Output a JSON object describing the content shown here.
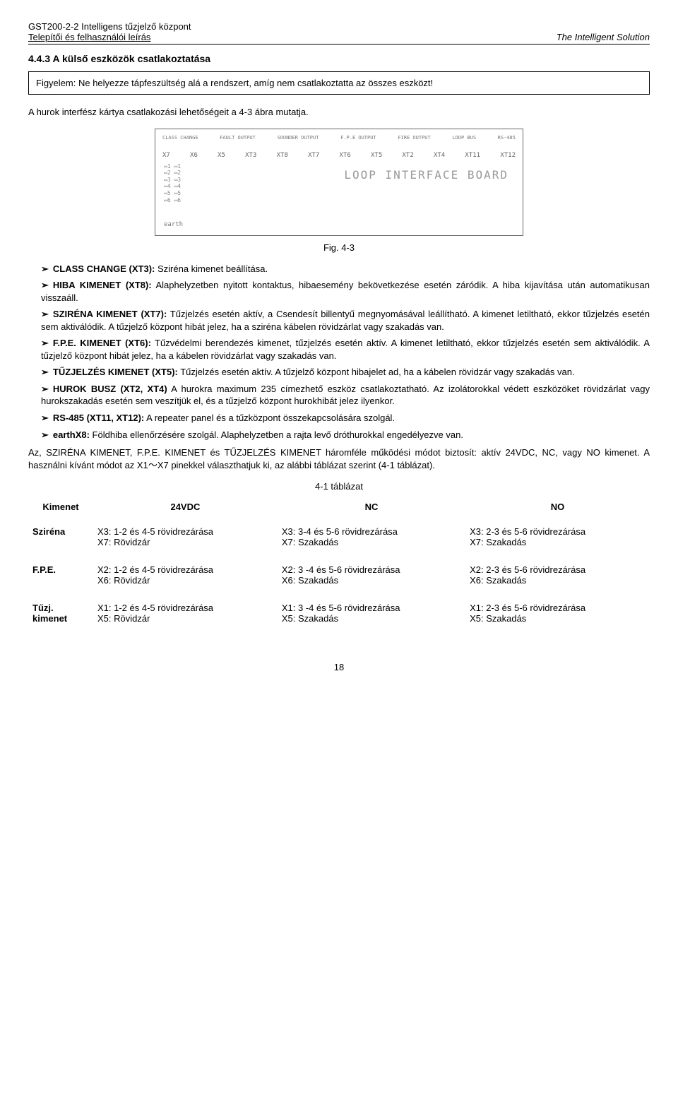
{
  "header": {
    "title": "GST200-2-2 Intelligens tűzjelző központ",
    "subtitle": "Telepítői és felhasználói leírás",
    "brand": "The Intelligent Solution"
  },
  "section": {
    "number_title": "4.4.3 A külső eszközök csatlakoztatása"
  },
  "warning": "Figyelem: Ne helyezze tápfeszültség alá a rendszert, amíg nem csatlakoztatta az összes eszközt!",
  "intro": "A hurok interfész kártya csatlakozási lehetőségeit a 4-3 ábra mutatja.",
  "figure": {
    "caption": "Fig. 4-3",
    "board_label": "LOOP INTERFACE BOARD",
    "top_labels": [
      "CLASS CHANGE",
      "FAULT OUTPUT",
      "SOUNDER OUTPUT",
      "F.P.E OUTPUT",
      "FIRE OUTPUT",
      "LOOP BUS",
      "RS-485"
    ],
    "xt_labels": [
      "X7",
      "X6",
      "X5",
      "XT3",
      "XT8",
      "XT7",
      "XT6",
      "XT5",
      "XT2",
      "XT4",
      "XT11",
      "XT12"
    ],
    "earth": "earth"
  },
  "bullets": {
    "b1_label": "CLASS CHANGE (XT3):",
    "b1_text": " Sziréna kimenet beállítása.",
    "b2_label": "HIBA KIMENET (XT8):",
    "b2_text": " Alaphelyzetben nyitott kontaktus, hibaesemény bekövetkezése esetén záródik. A hiba kijavítása után automatikusan visszaáll.",
    "b3_label": "SZIRÉNA KIMENET (XT7):",
    "b3_text": " Tűzjelzés esetén aktív, a Csendesít billentyű megnyomásával leállítható. A kimenet letiltható, ekkor tűzjelzés esetén sem aktiválódik. A tűzjelző központ hibát jelez, ha a sziréna kábelen rövidzárlat vagy szakadás van.",
    "b4_label": "F.P.E. KIMENET (XT6):",
    "b4_text": " Tűzvédelmi berendezés kimenet, tűzjelzés esetén aktív. A kimenet letiltható, ekkor tűzjelzés esetén sem aktiválódik. A tűzjelző központ hibát jelez, ha a kábelen rövidzárlat vagy szakadás van.",
    "b5_label": "TŰZJELZÉS KIMENET (XT5):",
    "b5_text": " Tűzjelzés esetén aktív. A tűzjelző központ hibajelet ad, ha a kábelen rövidzár vagy szakadás van.",
    "b6_label": "HUROK BUSZ  (XT2,  XT4)",
    "b6_text": " A hurokra maximum 235 címezhető eszköz csatlakoztatható. Az izolátorokkal védett eszközöket rövidzárlat vagy hurokszakadás esetén sem veszítjük el, és a tűzjelző központ hurokhibát jelez ilyenkor.",
    "b7_label": "RS-485 (XT11, XT12):",
    "b7_text": " A repeater panel és a tűzközpont összekapcsolására szolgál.",
    "b8_label": "earthX8:",
    "b8_text": " Földhiba ellenőrzésére szolgál. Alaphelyzetben a rajta levő dróthurokkal engedélyezve van."
  },
  "summary": "Az, SZIRÉNA KIMENET, F.P.E. KIMENET és TŰZJELZÉS KIMENET háromféle működési módot biztosít: aktív 24VDC, NC, vagy NO kimenet. A használni kívánt módot az X1～X7 pinekkel választhatjuk ki, az alábbi táblázat szerint (4-1 táblázat).",
  "table": {
    "caption": "4-1 táblázat",
    "headers": [
      "Kimenet",
      "24VDC",
      "NC",
      "NO"
    ],
    "rows": [
      {
        "name": "Sziréna",
        "c24": "X3: 1-2 és 4-5 rövidrezárása\nX7: Rövidzár",
        "nc": "X3: 3-4 és 5-6 rövidrezárása\nX7: Szakadás",
        "no": "X3: 2-3 és 5-6 rövidrezárása\nX7: Szakadás"
      },
      {
        "name": "F.P.E.",
        "c24": "X2: 1-2 és 4-5 rövidrezárása\nX6: Rövidzár",
        "nc": "X2: 3 -4 és 5-6 rövidrezárása\nX6: Szakadás",
        "no": "X2: 2-3 és 5-6 rövidrezárása\nX6: Szakadás"
      },
      {
        "name": "Tűzj. kimenet",
        "c24": "X1: 1-2 és 4-5 rövidrezárása\nX5: Rövidzár",
        "nc": "X1: 3 -4 és 5-6 rövidrezárása\nX5: Szakadás",
        "no": "X1: 2-3 és 5-6 rövidrezárása\nX5: Szakadás"
      }
    ]
  },
  "page_number": "18"
}
